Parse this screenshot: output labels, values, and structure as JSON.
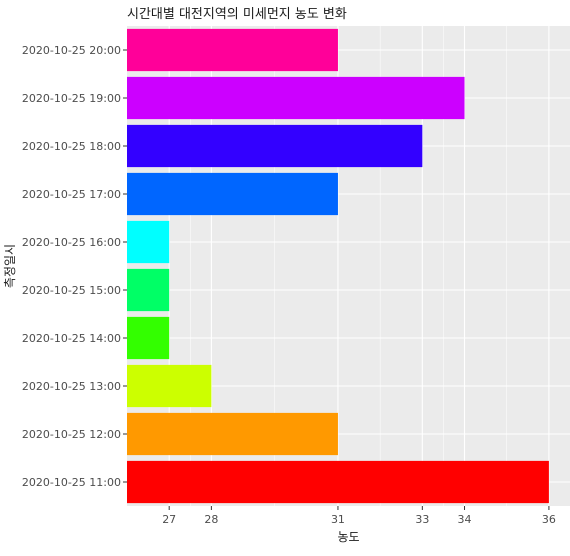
{
  "chart_data": {
    "type": "bar",
    "orientation": "horizontal",
    "title": "시간대별 대전지역의 미세먼지 농도 변화",
    "xlabel": "농도",
    "ylabel": "측정일시",
    "categories": [
      "2020-10-25 11:00",
      "2020-10-25 12:00",
      "2020-10-25 13:00",
      "2020-10-25 14:00",
      "2020-10-25 15:00",
      "2020-10-25 16:00",
      "2020-10-25 17:00",
      "2020-10-25 18:00",
      "2020-10-25 19:00",
      "2020-10-25 20:00"
    ],
    "values": [
      36,
      31,
      28,
      27,
      27,
      27,
      31,
      33,
      34,
      31
    ],
    "colors": [
      "#FF0000",
      "#FF9900",
      "#CCFF00",
      "#33FF00",
      "#00FF66",
      "#00FFFF",
      "#0066FF",
      "#3300FF",
      "#CC00FF",
      "#FF0099"
    ],
    "x_ticks": [
      27,
      28,
      31,
      33,
      34,
      36
    ],
    "xlim": [
      26,
      36.5
    ],
    "grid": true,
    "background": "#EBEBEB"
  }
}
